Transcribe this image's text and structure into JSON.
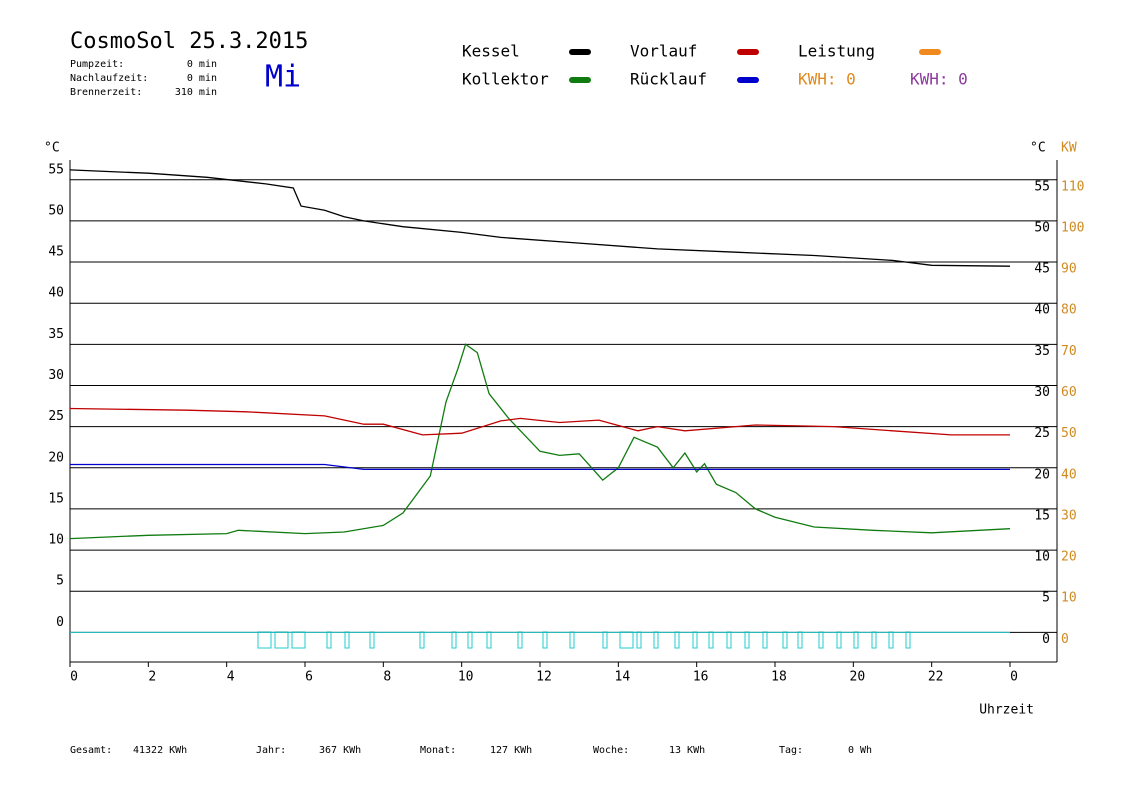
{
  "chart_data": {
    "type": "line",
    "title": "CosmoSol 25.3.2015",
    "weekday": "Mi",
    "info": [
      {
        "label": "Pumpzeit:",
        "value": "0 min"
      },
      {
        "label": "Nachlaufzeit:",
        "value": "0 min"
      },
      {
        "label": "Brennerzeit:",
        "value": "310 min"
      }
    ],
    "y_unit": "°C",
    "y2_unit": "KW",
    "x_label": "Uhrzeit",
    "xlim": [
      0,
      24
    ],
    "xticks": [
      0,
      2,
      4,
      6,
      8,
      10,
      12,
      14,
      16,
      18,
      20,
      22,
      {
        "value": 24,
        "label": "0"
      }
    ],
    "ylim": [
      -3.6,
      57.4
    ],
    "yticks": [
      0,
      5,
      10,
      15,
      20,
      25,
      30,
      35,
      40,
      45,
      50,
      55
    ],
    "y2lim": [
      -7.2,
      114.8
    ],
    "y2ticks": [
      0,
      10,
      20,
      30,
      40,
      50,
      60,
      70,
      80,
      90,
      100,
      110
    ],
    "grid": true,
    "series": [
      {
        "name": "Kessel",
        "color": "#000000",
        "x": [
          0,
          2,
          3.5,
          5,
          5.7,
          5.9,
          6.5,
          7,
          7.5,
          8.5,
          10,
          11,
          13,
          15,
          17,
          19,
          21,
          22,
          24
        ],
        "values": [
          56.2,
          55.8,
          55.3,
          54.5,
          54,
          51.8,
          51.3,
          50.5,
          50,
          49.3,
          48.6,
          48,
          47.3,
          46.6,
          46.2,
          45.8,
          45.2,
          44.6,
          44.5
        ]
      },
      {
        "name": "Kollektor",
        "color": "#107c10",
        "x": [
          0,
          2,
          4,
          4.3,
          6,
          7,
          8,
          8.5,
          9.2,
          9.6,
          9.9,
          10.1,
          10.4,
          10.7,
          11.2,
          12,
          12.5,
          13,
          13.6,
          14,
          14.4,
          15,
          15.4,
          15.7,
          16,
          16.2,
          16.5,
          17,
          17.5,
          18,
          19,
          20.5,
          22,
          24
        ],
        "values": [
          11.4,
          11.8,
          12,
          12.4,
          12,
          12.2,
          13,
          14.5,
          19,
          28,
          32,
          35,
          34,
          29,
          26,
          22,
          21.5,
          21.7,
          18.5,
          20,
          23.7,
          22.5,
          20,
          21.8,
          19.5,
          20.5,
          18,
          17,
          15,
          14,
          12.8,
          12.4,
          12.1,
          12.6
        ]
      },
      {
        "name": "Vorlauf",
        "color": "#c00000",
        "x": [
          0,
          3,
          4.5,
          6.5,
          7.5,
          8,
          9,
          10,
          11,
          11.5,
          12.5,
          13.5,
          14.5,
          15,
          15.7,
          17.5,
          19.5,
          21,
          22.5,
          24
        ],
        "values": [
          27.2,
          27,
          26.8,
          26.3,
          25.3,
          25.3,
          24,
          24.2,
          25.7,
          26,
          25.5,
          25.8,
          24.5,
          25,
          24.5,
          25.2,
          25,
          24.5,
          24,
          24
        ]
      },
      {
        "name": "Rücklauf",
        "color": "#0000cc",
        "x": [
          0,
          6.5,
          7.5,
          24
        ],
        "values": [
          20.4,
          20.4,
          19.8,
          19.8
        ]
      },
      {
        "name": "Leistung",
        "color": "#f08a1e",
        "x": [],
        "values": []
      }
    ],
    "kwh_labels": [
      {
        "label": "KWH: 0",
        "color": "#e08a1e"
      },
      {
        "label": "KWH: 0",
        "color": "#8e3a9e"
      }
    ],
    "footer": [
      {
        "label": "Gesamt:",
        "value": "41322 KWh"
      },
      {
        "label": "Jahr:",
        "value": "367 KWh"
      },
      {
        "label": "Monat:",
        "value": "127 KWh"
      },
      {
        "label": "Woche:",
        "value": "13 KWh"
      },
      {
        "label": "Tag:",
        "value": "0 Wh"
      }
    ]
  }
}
